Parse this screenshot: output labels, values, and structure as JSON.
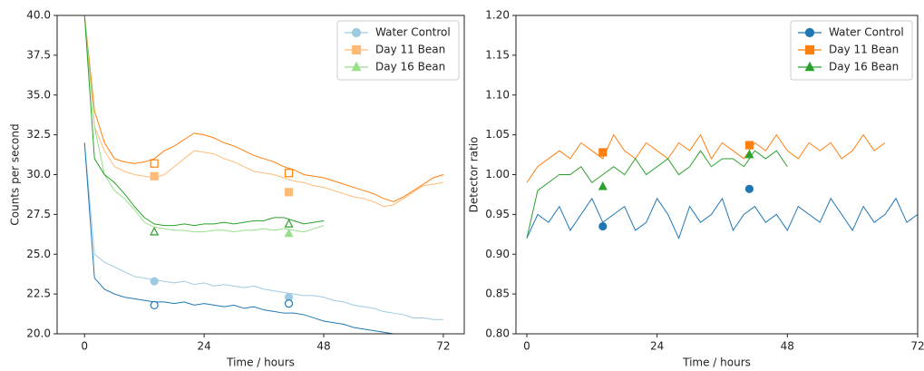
{
  "chart_data": [
    {
      "type": "line",
      "ylabel": "Counts per second",
      "xlabel": "Time / hours",
      "xlim": [
        -5.5,
        76.2
      ],
      "xticks": [
        0,
        24,
        48,
        72
      ],
      "ylim": [
        20,
        40
      ],
      "yticks": [
        {
          "value": 20,
          "label": "20.0"
        },
        {
          "value": 22.5,
          "label": "22.5"
        },
        {
          "value": 25,
          "label": "25.0"
        },
        {
          "value": 27.5,
          "label": "27.5"
        },
        {
          "value": 30,
          "label": "30.0"
        },
        {
          "value": 32.5,
          "label": "32.5"
        },
        {
          "value": 35,
          "label": "35.0"
        },
        {
          "value": 37.5,
          "label": "37.5"
        },
        {
          "value": 40,
          "label": "40.0"
        }
      ],
      "legend": "upper right",
      "x": [
        0,
        2,
        4,
        6,
        8,
        10,
        12,
        14,
        16,
        18,
        20,
        22,
        24,
        26,
        28,
        30,
        32,
        34,
        36,
        38,
        40,
        42,
        44,
        46,
        48,
        50,
        52,
        54,
        56,
        58,
        60,
        62,
        64,
        66,
        68,
        70,
        72
      ],
      "series": [
        {
          "name": "Water Control",
          "color": "#9ecae1",
          "marker": "o",
          "marker_fill": true,
          "marker_x": [
            14,
            41
          ],
          "marker_values": [
            23.3,
            22.3
          ],
          "values": [
            32,
            25,
            24.5,
            24.2,
            23.9,
            23.6,
            23.5,
            23.4,
            23.3,
            23.2,
            23.3,
            23.1,
            23.2,
            23.0,
            23.1,
            23.0,
            22.9,
            23.0,
            22.8,
            22.7,
            22.6,
            22.5,
            22.4,
            22.4,
            22.3,
            22.1,
            22.0,
            21.8,
            21.7,
            21.6,
            21.4,
            21.3,
            21.2,
            21.0,
            21.0,
            20.9,
            20.9
          ]
        },
        {
          "name": null,
          "color": "#1f77b4",
          "marker": "o",
          "marker_fill": false,
          "marker_x": [
            14,
            41
          ],
          "marker_values": [
            21.8,
            21.9
          ],
          "values": [
            32,
            23.5,
            22.8,
            22.5,
            22.3,
            22.2,
            22.1,
            22.0,
            22.0,
            21.9,
            22.0,
            21.8,
            21.9,
            21.8,
            21.7,
            21.8,
            21.6,
            21.7,
            21.5,
            21.4,
            21.3,
            21.3,
            21.2,
            21.0,
            20.8,
            20.7,
            20.6,
            20.4,
            20.3,
            20.2,
            20.1,
            20.0,
            null,
            null,
            null,
            null,
            null
          ]
        },
        {
          "name": "Day 11 Bean",
          "color": "#ffbb78",
          "marker": "s",
          "marker_fill": true,
          "marker_x": [
            14,
            41
          ],
          "marker_values": [
            29.9,
            28.9
          ],
          "values": [
            40,
            33,
            31.5,
            30.5,
            30.2,
            30.0,
            29.9,
            29.8,
            30.0,
            30.5,
            31.0,
            31.5,
            31.4,
            31.3,
            31.0,
            30.8,
            30.5,
            30.2,
            30.1,
            30.0,
            29.8,
            29.6,
            29.5,
            29.3,
            29.2,
            29.0,
            28.8,
            28.6,
            28.5,
            28.3,
            28.0,
            28.1,
            28.5,
            28.9,
            29.3,
            29.4,
            29.5
          ]
        },
        {
          "name": null,
          "color": "#ff7f0e",
          "marker": "s",
          "marker_fill": false,
          "marker_x": [
            14,
            41
          ],
          "marker_values": [
            30.7,
            30.1
          ],
          "values": [
            40,
            34,
            32,
            31,
            30.8,
            30.7,
            30.8,
            31.0,
            31.5,
            31.8,
            32.2,
            32.6,
            32.5,
            32.3,
            32.0,
            31.8,
            31.5,
            31.2,
            31.0,
            30.8,
            30.5,
            30.3,
            30.0,
            29.9,
            29.8,
            29.6,
            29.4,
            29.2,
            29.0,
            28.8,
            28.5,
            28.3,
            28.6,
            29.0,
            29.4,
            29.8,
            30.0
          ]
        },
        {
          "name": "Day 16 Bean",
          "color": "#98df8a",
          "marker": "^",
          "marker_fill": true,
          "marker_x": [
            14,
            41
          ],
          "marker_values": [
            26.4,
            26.3
          ],
          "values": [
            40,
            33,
            30,
            29,
            28.5,
            27.8,
            27,
            26.7,
            26.6,
            26.5,
            26.5,
            26.4,
            26.4,
            26.5,
            26.5,
            26.4,
            26.5,
            26.5,
            26.6,
            26.5,
            26.6,
            26.5,
            26.4,
            26.6,
            26.8,
            null,
            null,
            null,
            null,
            null,
            null,
            null,
            null,
            null,
            null,
            null,
            null
          ]
        },
        {
          "name": null,
          "color": "#2ca02c",
          "marker": "^",
          "marker_fill": false,
          "marker_x": [
            14,
            41
          ],
          "marker_values": [
            26.4,
            26.9
          ],
          "values": [
            40,
            31,
            30,
            29.5,
            28.8,
            28,
            27.3,
            26.9,
            26.8,
            26.8,
            26.9,
            26.8,
            26.9,
            26.9,
            27.0,
            26.9,
            27.0,
            27.1,
            27.1,
            27.3,
            27.3,
            27.1,
            26.9,
            27.0,
            27.1,
            null,
            null,
            null,
            null,
            null,
            null,
            null,
            null,
            null,
            null,
            null,
            null
          ]
        }
      ]
    },
    {
      "type": "line",
      "ylabel": "Detector ratio",
      "xlabel": "Time / hours",
      "xlim": [
        -2,
        72
      ],
      "xticks": [
        0,
        24,
        48,
        72
      ],
      "ylim": [
        0.8,
        1.2
      ],
      "yticks": [
        {
          "value": 0.8,
          "label": "0.80"
        },
        {
          "value": 0.85,
          "label": "0.85"
        },
        {
          "value": 0.9,
          "label": "0.90"
        },
        {
          "value": 0.95,
          "label": "0.95"
        },
        {
          "value": 1.0,
          "label": "1.00"
        },
        {
          "value": 1.05,
          "label": "1.05"
        },
        {
          "value": 1.1,
          "label": "1.10"
        },
        {
          "value": 1.15,
          "label": "1.15"
        },
        {
          "value": 1.2,
          "label": "1.20"
        }
      ],
      "legend": "upper right",
      "x": [
        0,
        2,
        4,
        6,
        8,
        10,
        12,
        14,
        16,
        18,
        20,
        22,
        24,
        26,
        28,
        30,
        32,
        34,
        36,
        38,
        40,
        42,
        44,
        46,
        48,
        50,
        52,
        54,
        56,
        58,
        60,
        62,
        64,
        66,
        68,
        70,
        72
      ],
      "series": [
        {
          "name": "Water Control",
          "color": "#1f77b4",
          "marker": "o",
          "marker_fill": true,
          "marker_x": [
            14,
            41
          ],
          "marker_values": [
            0.935,
            0.982
          ],
          "values": [
            0.92,
            0.95,
            0.94,
            0.96,
            0.93,
            0.95,
            0.97,
            0.94,
            0.95,
            0.96,
            0.93,
            0.94,
            0.97,
            0.95,
            0.92,
            0.96,
            0.94,
            0.95,
            0.97,
            0.93,
            0.95,
            0.96,
            0.94,
            0.95,
            0.93,
            0.96,
            0.95,
            0.94,
            0.97,
            0.95,
            0.93,
            0.96,
            0.94,
            0.95,
            0.97,
            0.94,
            0.95
          ]
        },
        {
          "name": "Day 11 Bean",
          "color": "#ff7f0e",
          "marker": "s",
          "marker_fill": true,
          "marker_x": [
            14,
            41
          ],
          "marker_values": [
            1.028,
            1.037
          ],
          "values": [
            0.99,
            1.01,
            1.02,
            1.03,
            1.02,
            1.04,
            1.03,
            1.02,
            1.05,
            1.03,
            1.02,
            1.04,
            1.03,
            1.02,
            1.04,
            1.03,
            1.05,
            1.02,
            1.04,
            1.03,
            1.02,
            1.04,
            1.03,
            1.05,
            1.03,
            1.02,
            1.04,
            1.03,
            1.04,
            1.02,
            1.03,
            1.05,
            1.03,
            1.04,
            null,
            null,
            null
          ]
        },
        {
          "name": "Day 16 Bean",
          "color": "#2ca02c",
          "marker": "^",
          "marker_fill": true,
          "marker_x": [
            14,
            41
          ],
          "marker_values": [
            0.985,
            1.025
          ],
          "values": [
            0.92,
            0.98,
            0.99,
            1.0,
            1.0,
            1.01,
            0.99,
            1.0,
            1.01,
            1.0,
            1.02,
            1.0,
            1.01,
            1.02,
            1.0,
            1.01,
            1.03,
            1.01,
            1.02,
            1.02,
            1.01,
            1.03,
            1.02,
            1.03,
            1.01,
            null,
            null,
            null,
            null,
            null,
            null,
            null,
            null,
            null,
            null,
            null,
            null
          ]
        }
      ]
    }
  ]
}
